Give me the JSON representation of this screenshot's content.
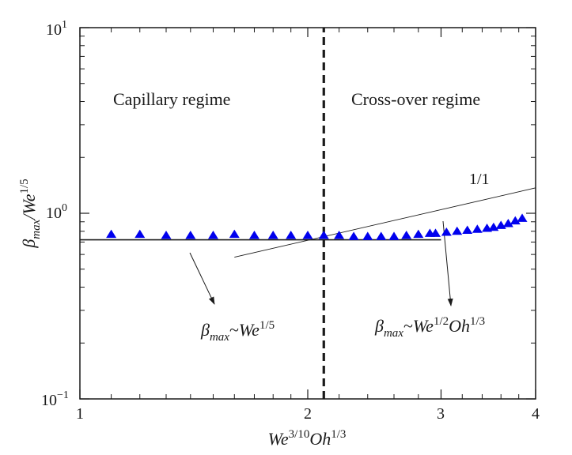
{
  "chart_data": {
    "type": "scatter",
    "title": "",
    "xscale": "log",
    "yscale": "log",
    "xlim": [
      1,
      4
    ],
    "ylim": [
      0.1,
      10
    ],
    "x_ticks": [
      {
        "value": 1,
        "label": "1"
      },
      {
        "value": 2,
        "label": "2"
      },
      {
        "value": 3,
        "label": "3"
      },
      {
        "value": 4,
        "label": "4"
      }
    ],
    "y_ticks": [
      {
        "value": 0.1,
        "base": "10",
        "exp": "−1"
      },
      {
        "value": 1,
        "base": "10",
        "exp": "0"
      },
      {
        "value": 10,
        "base": "10",
        "exp": "1"
      }
    ],
    "xlabel": {
      "p1": "We",
      "s1": "3/10",
      "p2": "Oh",
      "s2": "1/3"
    },
    "ylabel": {
      "beta": "β",
      "sub": "max",
      "p1": "/We",
      "s1": "1/5"
    },
    "series": [
      {
        "name": "data",
        "marker": "triangle",
        "color": "#0000ee",
        "x": [
          1.1,
          1.2,
          1.3,
          1.4,
          1.5,
          1.6,
          1.7,
          1.8,
          1.9,
          2.0,
          2.1,
          2.2,
          2.3,
          2.4,
          2.5,
          2.6,
          2.7,
          2.8,
          2.9,
          2.95,
          3.05,
          3.15,
          3.25,
          3.35,
          3.45,
          3.52,
          3.6,
          3.68,
          3.76,
          3.84
        ],
        "y": [
          0.77,
          0.77,
          0.76,
          0.76,
          0.76,
          0.77,
          0.76,
          0.76,
          0.76,
          0.76,
          0.76,
          0.76,
          0.75,
          0.75,
          0.75,
          0.75,
          0.76,
          0.77,
          0.78,
          0.78,
          0.79,
          0.8,
          0.81,
          0.82,
          0.83,
          0.84,
          0.86,
          0.88,
          0.91,
          0.94
        ]
      }
    ],
    "reference_lines": [
      {
        "name": "capillary-plateau",
        "style": "solid",
        "x": [
          1,
          3
        ],
        "y": [
          0.72,
          0.72
        ]
      },
      {
        "name": "slope-1-1",
        "style": "thin",
        "x": [
          1.6,
          4
        ],
        "y": [
          0.58,
          1.37
        ]
      },
      {
        "name": "crossover-boundary",
        "style": "dashed",
        "x": [
          2.1,
          2.1
        ],
        "y": [
          0.1,
          10
        ]
      }
    ],
    "annotations": {
      "capillary_regime": "Capillary regime",
      "crossover_regime": "Cross-over regime",
      "slope_label": "1/1",
      "law_left": {
        "beta": "β",
        "sub": "max",
        "tilde": "~",
        "p1": "We",
        "s1": "1/5"
      },
      "law_right": {
        "beta": "β",
        "sub": "max",
        "tilde": "~",
        "p1": "We",
        "s1": "1/2",
        "p2": "Oh",
        "s2": "1/3"
      }
    }
  }
}
